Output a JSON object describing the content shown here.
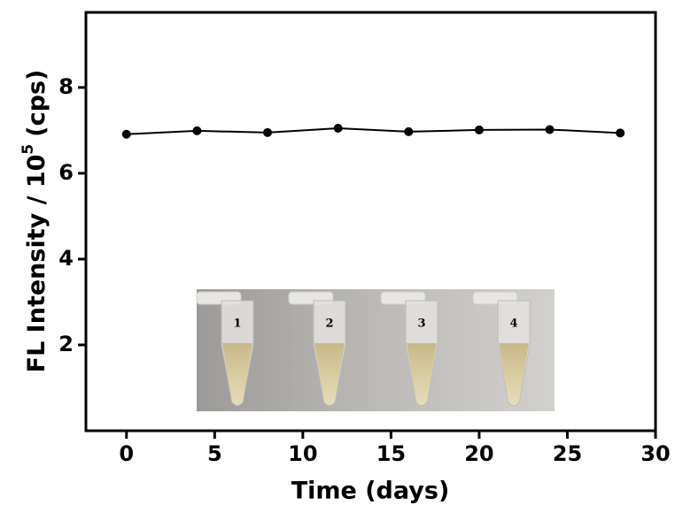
{
  "chart_data": {
    "type": "line",
    "x_label": "Time (days)",
    "y_label": "FL Intensity / 10",
    "y_label_exponent": "5",
    "y_label_unit": "(cps)",
    "x": [
      0,
      4,
      8,
      12,
      16,
      20,
      24,
      28
    ],
    "series": [
      {
        "color": "#000000",
        "values": [
          6.91,
          6.99,
          6.95,
          7.05,
          6.97,
          7.01,
          7.02,
          6.94
        ]
      }
    ],
    "xlim": [
      -2.3,
      30
    ],
    "xticks": [
      0,
      5,
      10,
      15,
      20,
      25,
      30
    ],
    "ylim": [
      0,
      9.75
    ],
    "yticks": [
      2,
      4,
      6,
      8
    ],
    "inset_labels": [
      "1",
      "2",
      "3",
      "4"
    ]
  }
}
